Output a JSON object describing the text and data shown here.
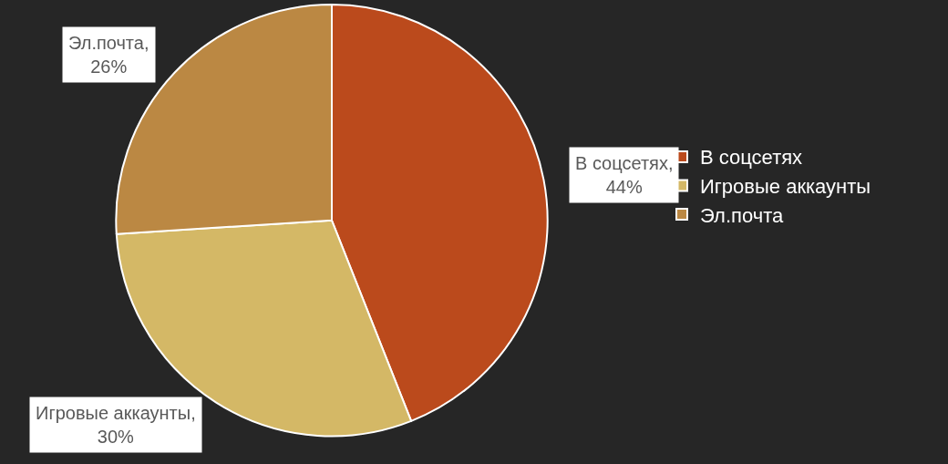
{
  "chart_data": {
    "type": "pie",
    "categories": [
      "В соцсетях",
      "Игровые аккаунты",
      "Эл.почта"
    ],
    "values": [
      44,
      30,
      26
    ],
    "colors": [
      "#bb4a1c",
      "#d4b866",
      "#bb8843"
    ],
    "value_labels": [
      "В соцсетях,44%",
      "Игровые аккаунты,30%",
      "Эл.почта,26%"
    ],
    "legend": "right"
  }
}
